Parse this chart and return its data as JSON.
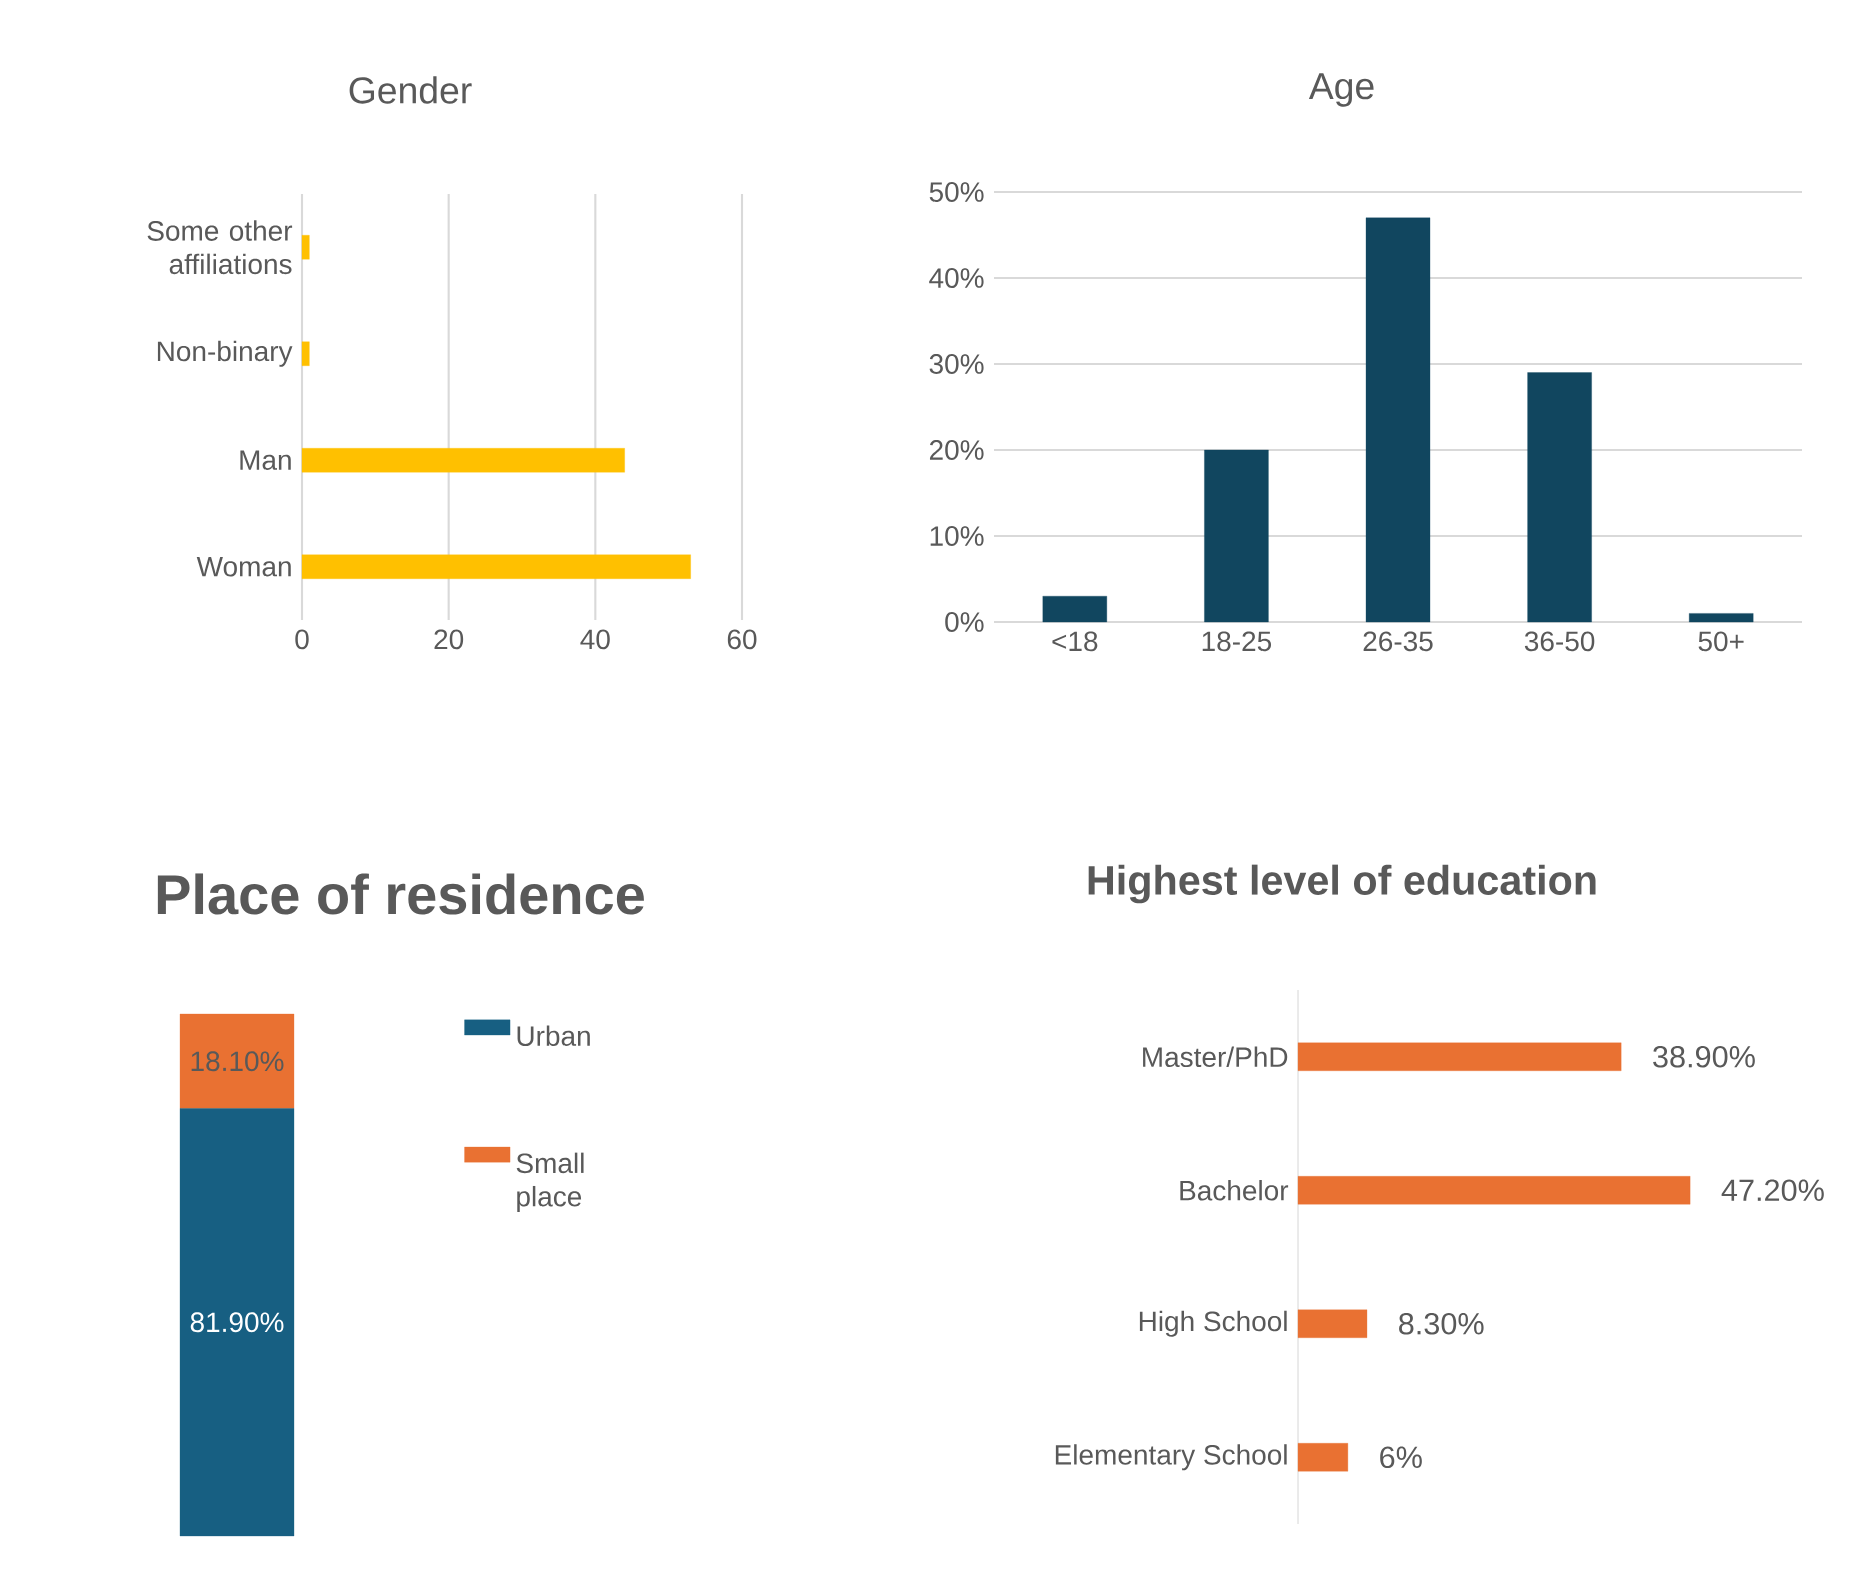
{
  "chart_data": [
    {
      "type": "bar",
      "title": "Gender",
      "orientation": "horizontal",
      "categories": [
        "Some other affiliations",
        "Non-binary",
        "Man",
        "Woman"
      ],
      "values": [
        1,
        1,
        44,
        53
      ],
      "color": "#ffc000",
      "xlim": [
        0,
        60
      ],
      "xticks": [
        0,
        20,
        40,
        60
      ],
      "grid": "x"
    },
    {
      "type": "bar",
      "title": "Age",
      "categories": [
        "<18",
        "18-25",
        "26-35",
        "36-50",
        "50+"
      ],
      "values": [
        3,
        20,
        47,
        29,
        1
      ],
      "color": "#11465f",
      "ylim": [
        0,
        50
      ],
      "yticks": [
        {
          "value": 0,
          "label": "0%"
        },
        {
          "value": 10,
          "label": "10%"
        },
        {
          "value": 20,
          "label": "20%"
        },
        {
          "value": 30,
          "label": "30%"
        },
        {
          "value": 40,
          "label": "40%"
        },
        {
          "value": 50,
          "label": "50%"
        }
      ],
      "grid": "y"
    },
    {
      "type": "bar",
      "title": "Place of residence",
      "stacked": true,
      "categories": [
        null
      ],
      "series": [
        {
          "name": "Urban",
          "color": "#175f82",
          "values": [
            81.9
          ],
          "value_labels": [
            "81.90%"
          ]
        },
        {
          "name": "Small place",
          "color": "#e97132",
          "values": [
            18.1
          ],
          "value_labels": [
            "18.10%"
          ]
        }
      ],
      "legend": "right",
      "tick_labels": false
    },
    {
      "type": "bar",
      "title": "Highest level of education",
      "orientation": "horizontal",
      "categories": [
        "Master/PhD",
        "Bachelor",
        "High School",
        "Elementary School"
      ],
      "values": [
        38.9,
        47.2,
        8.3,
        6
      ],
      "value_labels": [
        "38.90%",
        "47.20%",
        "8.30%",
        "6%"
      ],
      "color": "#e97132",
      "tick_labels": "y"
    }
  ]
}
